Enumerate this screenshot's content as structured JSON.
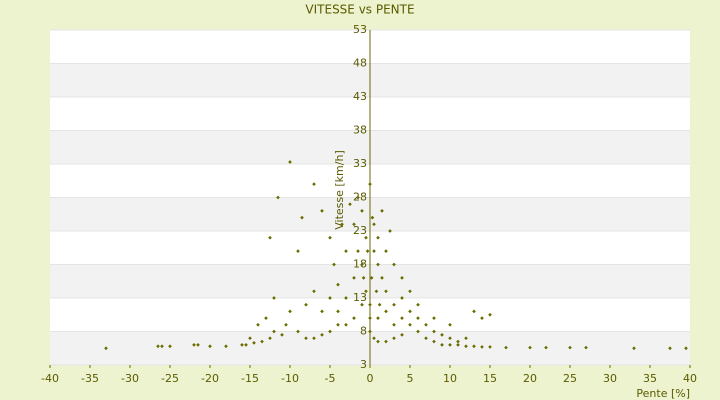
{
  "chart_data": {
    "type": "scatter",
    "title": "VITESSE vs PENTE",
    "x_label": "Pente [%]",
    "y_label": "Vitesse [km/h]",
    "color": "#6b6b00",
    "band_color": "#f2f2f2",
    "xlim": [
      -40,
      40
    ],
    "xticks": [
      -40,
      -35,
      -30,
      -25,
      -20,
      -15,
      -10,
      -5,
      0,
      5,
      10,
      15,
      20,
      25,
      30,
      35,
      40
    ],
    "ylim": [
      3,
      53
    ],
    "yticks": [
      3,
      8,
      13,
      18,
      23,
      28,
      33,
      38,
      43,
      48,
      53
    ],
    "x": [
      -33,
      -26.5,
      -26,
      -25,
      -22,
      -21.5,
      -20,
      -18,
      -16,
      -15.5,
      -14.5,
      -13.5,
      -12.5,
      -12,
      -11,
      -10.5,
      -10,
      -11.5,
      -12.5,
      -9,
      -8.5,
      -7,
      -6,
      -5,
      -4.5,
      -4,
      -3,
      -2,
      -1.5,
      -1,
      -0.5,
      0,
      0.3,
      0.5,
      1,
      1.5,
      2,
      3,
      4,
      5,
      6,
      7,
      8,
      9,
      10,
      11,
      12,
      13,
      14,
      15,
      17,
      20,
      22,
      25,
      27,
      33,
      37.5,
      39.5,
      14,
      15,
      13,
      10,
      8,
      6,
      5,
      4,
      3,
      2,
      1,
      0.5,
      -0.5,
      -1,
      -2,
      -3,
      -4,
      -5,
      -6,
      -7,
      -8,
      -9,
      -10,
      -8,
      -7,
      -6,
      -5,
      -4,
      -3,
      -2,
      -1,
      0,
      0,
      0,
      0.5,
      1,
      2,
      3,
      4,
      1,
      2,
      3,
      4,
      5,
      6,
      7,
      8,
      9,
      10,
      11,
      12,
      -12,
      -13,
      -14,
      -15,
      -2.5,
      -3.5,
      1.5,
      2.5,
      -0.3,
      0.2,
      0.8,
      -0.8,
      1.2,
      -1.5
    ],
    "values": [
      5.5,
      5.8,
      5.8,
      5.8,
      6,
      6,
      5.8,
      5.8,
      6,
      6,
      6.3,
      6.5,
      7,
      8,
      7.5,
      9,
      33.3,
      28,
      22,
      20,
      25,
      30,
      26,
      22,
      18,
      15,
      20,
      24,
      28,
      26,
      22,
      30,
      25,
      20,
      18,
      16,
      14,
      12,
      10,
      9,
      8,
      7,
      6.5,
      6,
      6,
      6,
      5.8,
      5.8,
      5.7,
      5.7,
      5.6,
      5.6,
      5.6,
      5.6,
      5.6,
      5.5,
      5.5,
      5.5,
      10,
      10.5,
      11,
      9,
      10,
      12,
      14,
      16,
      18,
      20,
      22,
      24,
      14,
      12,
      10,
      9,
      9,
      8,
      7.5,
      7,
      7,
      8,
      11,
      12,
      14,
      11,
      13,
      11,
      13,
      16,
      18,
      12,
      10,
      8,
      7,
      6.5,
      6.5,
      7,
      7.5,
      10,
      11,
      9,
      13,
      11,
      10,
      9,
      8,
      7.5,
      7,
      6.5,
      7,
      13,
      10,
      9,
      7,
      27,
      24,
      26,
      23,
      20,
      16,
      14,
      16,
      12,
      20
    ]
  }
}
